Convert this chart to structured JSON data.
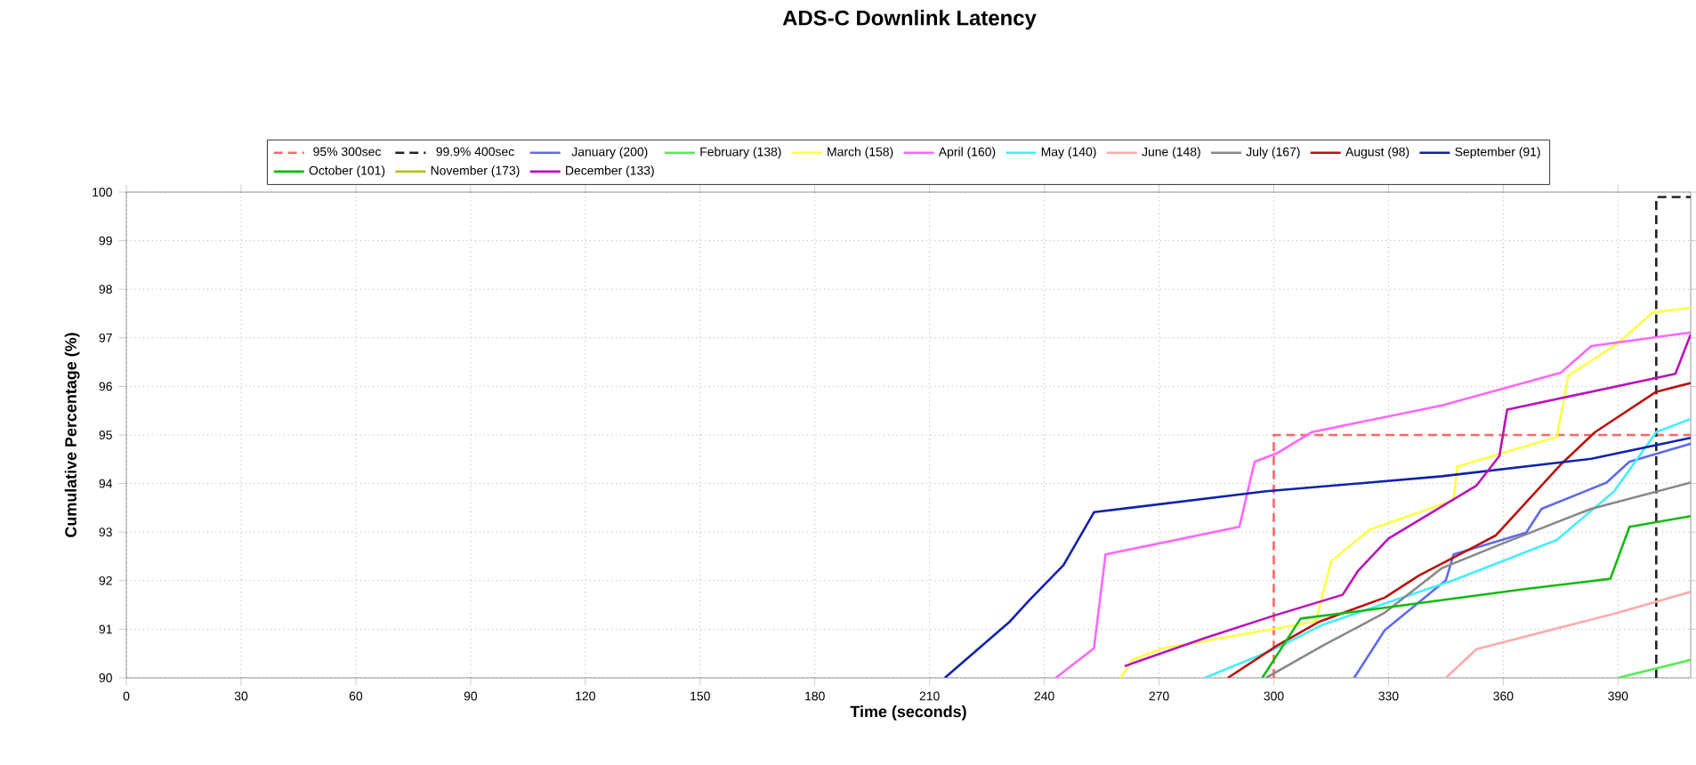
{
  "chart_data": {
    "type": "line",
    "title": "ADS-C Downlink Latency",
    "xlabel": "Time (seconds)",
    "ylabel": "Cumulative Percentage (%)",
    "xlim": [
      0,
      409
    ],
    "ylim": [
      90,
      100
    ],
    "xticks": [
      0,
      30,
      60,
      90,
      120,
      150,
      180,
      210,
      240,
      270,
      300,
      330,
      360,
      390
    ],
    "yticks": [
      90,
      91,
      92,
      93,
      94,
      95,
      96,
      97,
      98,
      99,
      100
    ],
    "grid": true,
    "legend": "top",
    "marker": "none",
    "line_style": "solid",
    "series": [
      {
        "name": "95% 300sec",
        "color": "#ff6666",
        "line_style": "dashed",
        "x": [
          300,
          300,
          409
        ],
        "values": [
          90,
          95,
          95
        ]
      },
      {
        "name": "99.9% 400sec",
        "color": "#222222",
        "line_style": "dashed",
        "x": [
          400,
          400,
          409
        ],
        "values": [
          90,
          99.9,
          99.9
        ]
      },
      {
        "name": "January  (200)",
        "color": "#5f6af0",
        "x": [
          321,
          329,
          345,
          347,
          366,
          370,
          387,
          393,
          409
        ],
        "values": [
          90,
          90.98,
          92.01,
          92.54,
          92.99,
          93.48,
          94.02,
          94.45,
          94.82
        ]
      },
      {
        "name": "February  (138)",
        "color": "#55ee55",
        "x": [
          390,
          409
        ],
        "values": [
          90,
          90.37
        ]
      },
      {
        "name": "March  (158)",
        "color": "#ffff44",
        "x": [
          260,
          263,
          271,
          311,
          315,
          325,
          347,
          348,
          374,
          377,
          390,
          399,
          409
        ],
        "values": [
          90,
          90.37,
          90.61,
          91.16,
          92.4,
          93.05,
          93.66,
          94.35,
          94.96,
          96.22,
          96.89,
          97.52,
          97.62
        ]
      },
      {
        "name": "April  (160)",
        "color": "#ff66ff",
        "x": [
          243,
          253,
          256,
          291,
          295,
          301,
          310,
          344,
          375,
          383,
          409
        ],
        "values": [
          90,
          90.61,
          92.54,
          93.11,
          94.45,
          94.63,
          95.06,
          95.61,
          96.28,
          96.83,
          97.11
        ]
      },
      {
        "name": "May  (140)",
        "color": "#44eeff",
        "x": [
          282,
          299,
          313,
          347,
          374,
          389,
          400,
          409
        ],
        "values": [
          90,
          90.55,
          91.1,
          92.01,
          92.84,
          93.84,
          95.06,
          95.33
        ]
      },
      {
        "name": "June  (148)",
        "color": "#ffaaaa",
        "x": [
          345,
          353,
          390,
          409
        ],
        "values": [
          90,
          90.59,
          91.34,
          91.77
        ]
      },
      {
        "name": "July  (167)",
        "color": "#888888",
        "x": [
          298,
          313,
          329,
          344,
          359,
          383,
          409
        ],
        "values": [
          90,
          90.67,
          91.34,
          92.26,
          92.74,
          93.48,
          94.02
        ]
      },
      {
        "name": "August  (98)",
        "color": "#bb1111",
        "x": [
          288,
          301,
          312,
          329,
          338,
          352,
          358,
          375,
          384,
          400,
          409
        ],
        "values": [
          90,
          90.67,
          91.16,
          91.65,
          92.11,
          92.68,
          92.93,
          94.39,
          95.06,
          95.89,
          96.07
        ]
      },
      {
        "name": "September  (91)",
        "color": "#1122aa",
        "x": [
          214,
          231,
          236,
          245,
          253,
          298,
          344,
          383,
          409
        ],
        "values": [
          90,
          91.16,
          91.59,
          92.32,
          93.41,
          93.84,
          94.15,
          94.51,
          94.94
        ]
      },
      {
        "name": "October  (101)",
        "color": "#11bb11",
        "x": [
          297,
          307,
          325,
          366,
          388,
          393,
          409
        ],
        "values": [
          90,
          91.22,
          91.4,
          91.83,
          92.04,
          93.11,
          93.33
        ]
      },
      {
        "name": "November  (173)",
        "color": "#bbbb22"
      },
      {
        "name": "December  (133)",
        "color": "#bb11bb",
        "x": [
          261,
          282,
          300,
          318,
          322,
          330,
          353,
          359,
          361,
          405,
          409
        ],
        "values": [
          90.24,
          90.82,
          91.28,
          91.71,
          92.2,
          92.87,
          93.96,
          94.57,
          95.52,
          96.26,
          97.07
        ]
      }
    ]
  }
}
